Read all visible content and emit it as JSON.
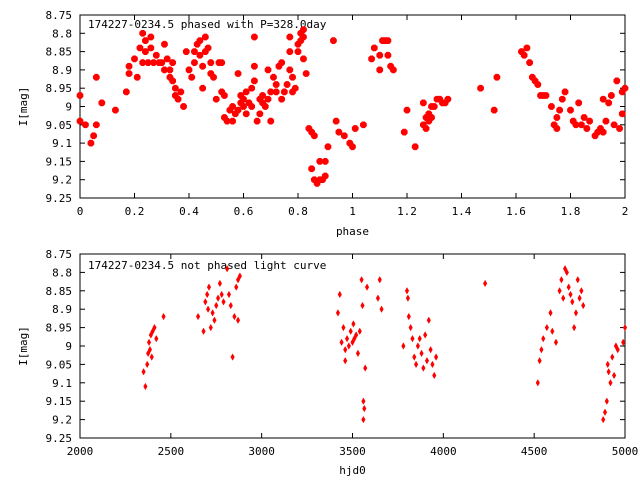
{
  "chart_data": [
    {
      "type": "scatter",
      "title": "174227-0234.5 phased with P=328.0day",
      "xlabel": "phase",
      "ylabel": "I[mag]",
      "xlim": [
        0,
        2
      ],
      "ylim": [
        8.75,
        9.25
      ],
      "y_inverted": true,
      "x_ticks": [
        "0",
        "0.2",
        "0.4",
        "0.6",
        "0.8",
        "1",
        "1.2",
        "1.4",
        "1.6",
        "1.8",
        "2"
      ],
      "y_ticks": [
        "8.75",
        "8.8",
        "8.85",
        "8.9",
        "8.95",
        "9",
        "9.05",
        "9.1",
        "9.15",
        "9.2",
        "9.25"
      ],
      "grid": false,
      "marker_color": "#ff0000",
      "marker": "hexagon",
      "points": [
        [
          0.0,
          9.04
        ],
        [
          0.0,
          8.97
        ],
        [
          0.02,
          9.05
        ],
        [
          0.04,
          9.1
        ],
        [
          0.05,
          9.08
        ],
        [
          0.06,
          8.92
        ],
        [
          0.06,
          9.05
        ],
        [
          0.08,
          8.99
        ],
        [
          0.13,
          9.01
        ],
        [
          0.17,
          8.96
        ],
        [
          0.18,
          8.91
        ],
        [
          0.18,
          8.89
        ],
        [
          0.2,
          8.87
        ],
        [
          0.21,
          8.92
        ],
        [
          0.22,
          8.84
        ],
        [
          0.23,
          8.88
        ],
        [
          0.23,
          8.8
        ],
        [
          0.24,
          8.82
        ],
        [
          0.24,
          8.85
        ],
        [
          0.25,
          8.88
        ],
        [
          0.26,
          8.84
        ],
        [
          0.26,
          8.81
        ],
        [
          0.27,
          8.88
        ],
        [
          0.28,
          8.86
        ],
        [
          0.29,
          8.88
        ],
        [
          0.3,
          8.88
        ],
        [
          0.31,
          8.9
        ],
        [
          0.31,
          8.83
        ],
        [
          0.32,
          8.87
        ],
        [
          0.33,
          8.9
        ],
        [
          0.34,
          8.93
        ],
        [
          0.34,
          8.88
        ],
        [
          0.35,
          8.95
        ],
        [
          0.33,
          8.92
        ],
        [
          0.35,
          8.97
        ],
        [
          0.36,
          8.98
        ],
        [
          0.37,
          8.96
        ],
        [
          0.38,
          9.0
        ],
        [
          0.39,
          8.85
        ],
        [
          0.4,
          8.9
        ],
        [
          0.41,
          8.92
        ],
        [
          0.42,
          8.85
        ],
        [
          0.42,
          8.88
        ],
        [
          0.43,
          8.83
        ],
        [
          0.44,
          8.82
        ],
        [
          0.44,
          8.86
        ],
        [
          0.45,
          8.89
        ],
        [
          0.45,
          8.95
        ],
        [
          0.46,
          8.81
        ],
        [
          0.46,
          8.85
        ],
        [
          0.47,
          8.84
        ],
        [
          0.48,
          8.88
        ],
        [
          0.48,
          8.91
        ],
        [
          0.49,
          8.92
        ],
        [
          0.5,
          8.98
        ],
        [
          0.51,
          8.88
        ],
        [
          0.52,
          8.96
        ],
        [
          0.52,
          8.88
        ],
        [
          0.53,
          8.97
        ],
        [
          0.53,
          9.03
        ],
        [
          0.54,
          9.04
        ],
        [
          0.55,
          9.01
        ],
        [
          0.56,
          9.04
        ],
        [
          0.56,
          9.0
        ],
        [
          0.57,
          9.02
        ],
        [
          0.58,
          9.01
        ],
        [
          0.58,
          8.91
        ],
        [
          0.59,
          8.97
        ],
        [
          0.59,
          8.99
        ],
        [
          0.6,
          9.0
        ],
        [
          0.6,
          8.98
        ],
        [
          0.61,
          8.96
        ],
        [
          0.61,
          9.02
        ],
        [
          0.62,
          8.99
        ],
        [
          0.63,
          9.0
        ],
        [
          0.63,
          8.95
        ],
        [
          0.64,
          8.93
        ],
        [
          0.64,
          8.89
        ],
        [
          0.64,
          8.81
        ],
        [
          0.65,
          9.04
        ],
        [
          0.66,
          9.02
        ],
        [
          0.66,
          8.98
        ],
        [
          0.67,
          8.99
        ],
        [
          0.67,
          8.97
        ],
        [
          0.68,
          9.0
        ],
        [
          0.69,
          8.98
        ],
        [
          0.69,
          8.9
        ],
        [
          0.7,
          9.04
        ],
        [
          0.7,
          8.96
        ],
        [
          0.71,
          8.92
        ],
        [
          0.72,
          8.94
        ],
        [
          0.72,
          8.96
        ],
        [
          0.73,
          8.89
        ],
        [
          0.74,
          8.88
        ],
        [
          0.74,
          8.98
        ],
        [
          0.75,
          8.96
        ],
        [
          0.76,
          8.94
        ],
        [
          0.77,
          8.81
        ],
        [
          0.77,
          8.9
        ],
        [
          0.77,
          8.85
        ],
        [
          0.78,
          8.92
        ],
        [
          0.78,
          8.96
        ],
        [
          0.79,
          8.95
        ],
        [
          0.8,
          8.83
        ],
        [
          0.8,
          8.85
        ],
        [
          0.81,
          8.82
        ],
        [
          0.81,
          8.8
        ],
        [
          0.82,
          8.81
        ],
        [
          0.82,
          8.79
        ],
        [
          0.82,
          8.87
        ],
        [
          0.83,
          8.91
        ],
        [
          0.84,
          9.06
        ],
        [
          0.85,
          9.07
        ],
        [
          0.86,
          9.08
        ],
        [
          0.85,
          9.17
        ],
        [
          0.86,
          9.2
        ],
        [
          0.87,
          9.21
        ],
        [
          0.88,
          9.2
        ],
        [
          0.89,
          9.2
        ],
        [
          0.88,
          9.15
        ],
        [
          0.9,
          9.15
        ],
        [
          0.9,
          9.19
        ],
        [
          0.91,
          9.11
        ],
        [
          0.93,
          8.82
        ],
        [
          0.94,
          9.04
        ],
        [
          0.95,
          9.07
        ],
        [
          0.97,
          9.08
        ],
        [
          0.99,
          9.1
        ],
        [
          1.0,
          9.11
        ],
        [
          1.01,
          9.06
        ],
        [
          1.04,
          9.05
        ],
        [
          1.07,
          8.87
        ],
        [
          1.08,
          8.84
        ],
        [
          1.1,
          8.86
        ],
        [
          1.1,
          8.9
        ],
        [
          1.11,
          8.82
        ],
        [
          1.12,
          8.82
        ],
        [
          1.13,
          8.82
        ],
        [
          1.13,
          8.86
        ],
        [
          1.14,
          8.89
        ],
        [
          1.15,
          8.9
        ],
        [
          1.19,
          9.07
        ],
        [
          1.2,
          9.01
        ],
        [
          1.23,
          9.11
        ],
        [
          1.26,
          8.99
        ],
        [
          1.26,
          9.05
        ],
        [
          1.27,
          9.06
        ],
        [
          1.27,
          9.03
        ],
        [
          1.28,
          9.04
        ],
        [
          1.28,
          9.02
        ],
        [
          1.29,
          9.03
        ],
        [
          1.29,
          9.0
        ],
        [
          1.3,
          9.0
        ],
        [
          1.31,
          8.98
        ],
        [
          1.32,
          8.98
        ],
        [
          1.33,
          8.99
        ],
        [
          1.34,
          8.99
        ],
        [
          1.35,
          8.98
        ],
        [
          1.47,
          8.95
        ],
        [
          1.52,
          9.01
        ],
        [
          1.53,
          8.92
        ],
        [
          1.62,
          8.85
        ],
        [
          1.63,
          8.86
        ],
        [
          1.64,
          8.84
        ],
        [
          1.65,
          8.88
        ],
        [
          1.66,
          8.92
        ],
        [
          1.67,
          8.93
        ],
        [
          1.68,
          8.94
        ],
        [
          1.69,
          8.97
        ],
        [
          1.7,
          8.97
        ],
        [
          1.71,
          8.97
        ],
        [
          1.73,
          9.0
        ],
        [
          1.74,
          9.05
        ],
        [
          1.75,
          9.06
        ],
        [
          1.75,
          9.03
        ],
        [
          1.76,
          9.01
        ],
        [
          1.77,
          8.98
        ],
        [
          1.78,
          8.96
        ],
        [
          1.8,
          9.01
        ],
        [
          1.81,
          9.04
        ],
        [
          1.82,
          9.05
        ],
        [
          1.83,
          8.99
        ],
        [
          1.84,
          9.05
        ],
        [
          1.85,
          9.03
        ],
        [
          1.86,
          9.06
        ],
        [
          1.87,
          9.04
        ],
        [
          1.89,
          9.08
        ],
        [
          1.9,
          9.07
        ],
        [
          1.91,
          9.06
        ],
        [
          1.92,
          9.07
        ],
        [
          1.92,
          8.98
        ],
        [
          1.93,
          9.04
        ],
        [
          1.94,
          8.99
        ],
        [
          1.95,
          8.97
        ],
        [
          1.96,
          9.05
        ],
        [
          1.97,
          8.93
        ],
        [
          1.98,
          9.06
        ],
        [
          1.99,
          9.02
        ],
        [
          2.0,
          8.95
        ],
        [
          1.99,
          8.96
        ]
      ]
    },
    {
      "type": "scatter",
      "title": "174227-0234.5 not phased light curve",
      "xlabel": "hjd0",
      "ylabel": "I[mag]",
      "xlim": [
        2000,
        5000
      ],
      "ylim": [
        8.75,
        9.25
      ],
      "y_inverted": true,
      "x_ticks": [
        "2000",
        "2500",
        "3000",
        "3500",
        "4000",
        "4500",
        "5000"
      ],
      "y_ticks": [
        "8.75",
        "8.8",
        "8.85",
        "8.9",
        "8.95",
        "9",
        "9.05",
        "9.1",
        "9.15",
        "9.2",
        "9.25"
      ],
      "grid": false,
      "marker_color": "#ff0000",
      "marker": "diamond",
      "points": [
        [
          2350,
          9.07
        ],
        [
          2360,
          9.11
        ],
        [
          2370,
          9.05
        ],
        [
          2375,
          9.02
        ],
        [
          2380,
          8.99
        ],
        [
          2385,
          9.01
        ],
        [
          2390,
          8.97
        ],
        [
          2395,
          9.03
        ],
        [
          2400,
          8.96
        ],
        [
          2410,
          8.95
        ],
        [
          2420,
          8.98
        ],
        [
          2460,
          8.92
        ],
        [
          2650,
          8.92
        ],
        [
          2680,
          8.96
        ],
        [
          2690,
          8.88
        ],
        [
          2700,
          8.86
        ],
        [
          2705,
          8.9
        ],
        [
          2710,
          8.84
        ],
        [
          2720,
          8.95
        ],
        [
          2730,
          8.91
        ],
        [
          2740,
          8.93
        ],
        [
          2750,
          8.89
        ],
        [
          2760,
          8.87
        ],
        [
          2770,
          8.83
        ],
        [
          2780,
          8.86
        ],
        [
          2790,
          8.88
        ],
        [
          2810,
          8.79
        ],
        [
          2820,
          8.86
        ],
        [
          2830,
          8.89
        ],
        [
          2840,
          9.03
        ],
        [
          2850,
          8.92
        ],
        [
          2860,
          8.84
        ],
        [
          2870,
          8.82
        ],
        [
          2880,
          8.81
        ],
        [
          2870,
          8.93
        ],
        [
          3420,
          8.91
        ],
        [
          3430,
          8.86
        ],
        [
          3440,
          8.99
        ],
        [
          3450,
          8.95
        ],
        [
          3460,
          9.01
        ],
        [
          3460,
          9.04
        ],
        [
          3470,
          8.98
        ],
        [
          3480,
          9.0
        ],
        [
          3490,
          8.96
        ],
        [
          3500,
          8.99
        ],
        [
          3505,
          8.94
        ],
        [
          3510,
          8.98
        ],
        [
          3520,
          8.97
        ],
        [
          3530,
          9.02
        ],
        [
          3540,
          8.96
        ],
        [
          3550,
          8.82
        ],
        [
          3555,
          8.89
        ],
        [
          3560,
          9.15
        ],
        [
          3560,
          9.2
        ],
        [
          3565,
          9.17
        ],
        [
          3570,
          9.06
        ],
        [
          3580,
          8.84
        ],
        [
          3640,
          8.87
        ],
        [
          3650,
          8.82
        ],
        [
          3660,
          8.9
        ],
        [
          3780,
          9.0
        ],
        [
          3800,
          8.85
        ],
        [
          3805,
          8.87
        ],
        [
          3810,
          8.92
        ],
        [
          3820,
          8.95
        ],
        [
          3830,
          8.98
        ],
        [
          3840,
          9.03
        ],
        [
          3850,
          9.05
        ],
        [
          3860,
          9.0
        ],
        [
          3870,
          8.98
        ],
        [
          3880,
          9.02
        ],
        [
          3890,
          9.06
        ],
        [
          3900,
          8.97
        ],
        [
          3910,
          9.04
        ],
        [
          3920,
          8.93
        ],
        [
          3930,
          9.01
        ],
        [
          3940,
          9.05
        ],
        [
          3950,
          9.08
        ],
        [
          3960,
          9.03
        ],
        [
          4230,
          8.83
        ],
        [
          4520,
          9.1
        ],
        [
          4530,
          9.04
        ],
        [
          4540,
          9.01
        ],
        [
          4550,
          8.98
        ],
        [
          4570,
          8.95
        ],
        [
          4590,
          8.91
        ],
        [
          4600,
          8.96
        ],
        [
          4620,
          8.99
        ],
        [
          4640,
          8.85
        ],
        [
          4650,
          8.82
        ],
        [
          4660,
          8.87
        ],
        [
          4670,
          8.79
        ],
        [
          4680,
          8.8
        ],
        [
          4690,
          8.84
        ],
        [
          4700,
          8.86
        ],
        [
          4710,
          8.88
        ],
        [
          4720,
          8.95
        ],
        [
          4730,
          8.91
        ],
        [
          4740,
          8.82
        ],
        [
          4750,
          8.87
        ],
        [
          4760,
          8.85
        ],
        [
          4770,
          8.89
        ],
        [
          4880,
          9.2
        ],
        [
          4890,
          9.18
        ],
        [
          4900,
          9.15
        ],
        [
          4905,
          9.05
        ],
        [
          4910,
          9.07
        ],
        [
          4920,
          9.1
        ],
        [
          4930,
          9.03
        ],
        [
          4940,
          9.08
        ],
        [
          4950,
          9.0
        ],
        [
          4960,
          9.01
        ],
        [
          4990,
          8.99
        ],
        [
          5000,
          8.95
        ]
      ]
    }
  ]
}
